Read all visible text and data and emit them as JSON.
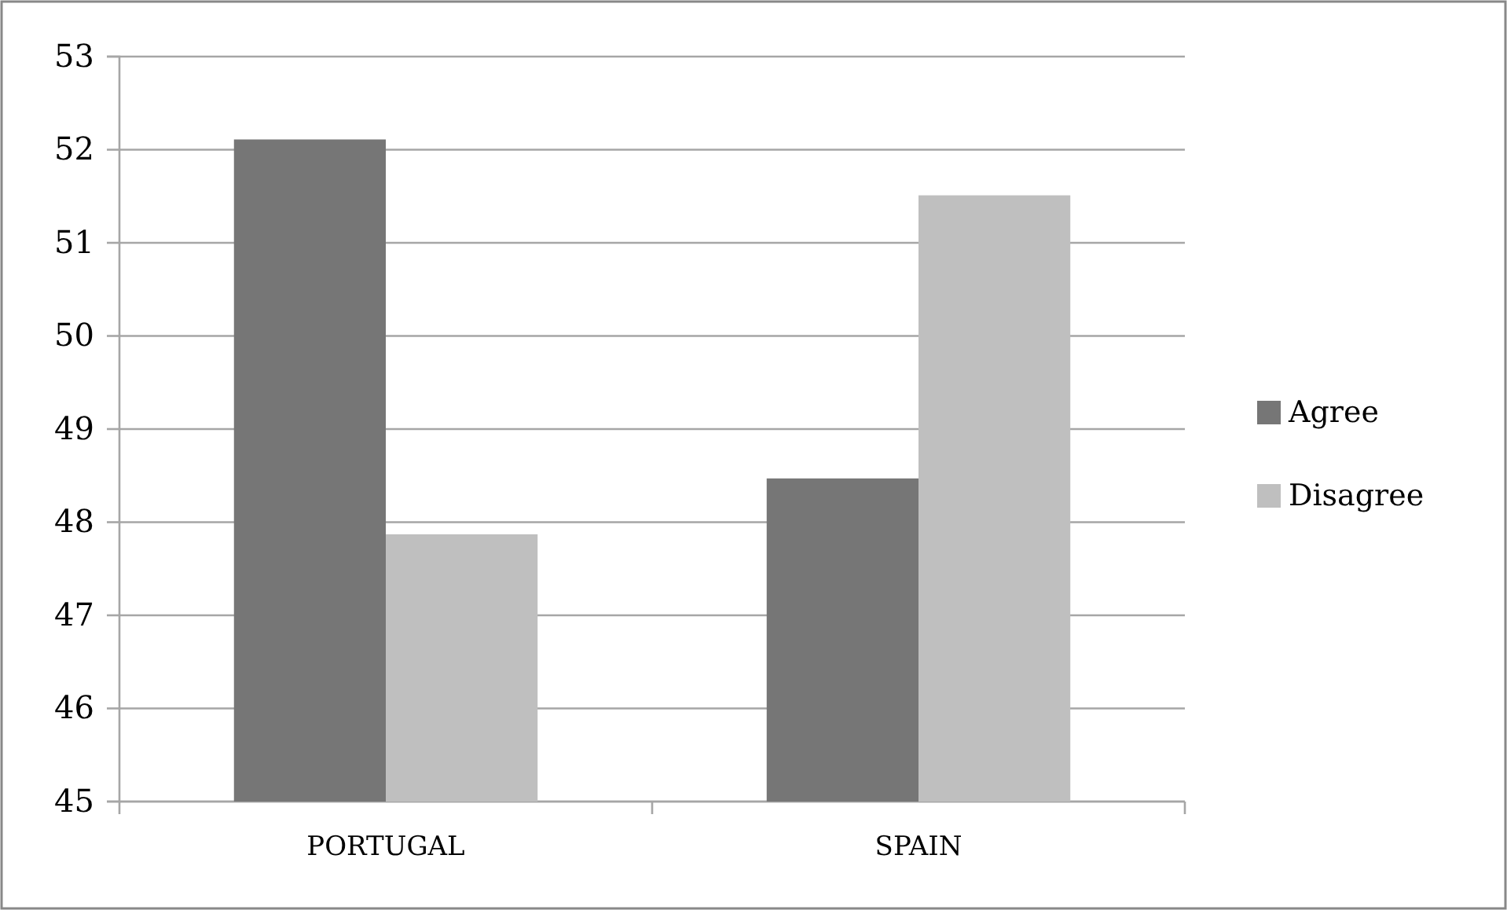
{
  "chart_data": {
    "type": "bar",
    "categories": [
      "PORTUGAL",
      "SPAIN"
    ],
    "series": [
      {
        "name": "Agree",
        "color": "#767676",
        "values": [
          52.11,
          48.47
        ]
      },
      {
        "name": "Disagree",
        "color": "#bfbfbf",
        "values": [
          47.87,
          51.51
        ]
      }
    ],
    "ylim": [
      45,
      53
    ],
    "yticks": [
      45,
      46,
      47,
      48,
      49,
      50,
      51,
      52,
      53
    ],
    "grid": "y",
    "legend": "right"
  }
}
